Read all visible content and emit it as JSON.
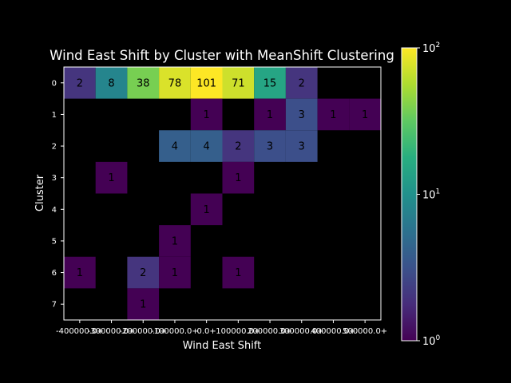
{
  "chart_data": {
    "type": "heatmap",
    "title": "Wind East Shift by Cluster with MeanShift Clustering",
    "xlabel": "Wind East Shift",
    "ylabel": "Cluster",
    "x_tick_labels": [
      "-400000.0+",
      "-300000.0+",
      "-200000.0+",
      "-100000.0+",
      "0.0+",
      "100000.0+",
      "200000.0+",
      "300000.0+",
      "400000.0+",
      "500000.0+"
    ],
    "y_tick_labels": [
      "0",
      "1",
      "2",
      "3",
      "4",
      "5",
      "6",
      "7"
    ],
    "matrix": [
      [
        2,
        8,
        38,
        78,
        101,
        71,
        15,
        2,
        null,
        null
      ],
      [
        null,
        null,
        null,
        null,
        1,
        null,
        1,
        3,
        1,
        1
      ],
      [
        null,
        null,
        null,
        4,
        4,
        2,
        3,
        3,
        null,
        null
      ],
      [
        null,
        1,
        null,
        null,
        null,
        1,
        null,
        null,
        null,
        null
      ],
      [
        null,
        null,
        null,
        null,
        1,
        null,
        null,
        null,
        null,
        null
      ],
      [
        null,
        null,
        null,
        1,
        null,
        null,
        null,
        null,
        null,
        null
      ],
      [
        1,
        null,
        2,
        1,
        null,
        1,
        null,
        null,
        null,
        null
      ],
      [
        null,
        null,
        1,
        null,
        null,
        null,
        null,
        null,
        null,
        null
      ]
    ],
    "colorbar": {
      "scale": "log",
      "range": [
        1,
        100
      ],
      "ticks": [
        {
          "value": 1,
          "base": "10",
          "exp": "0"
        },
        {
          "value": 10,
          "base": "10",
          "exp": "1"
        },
        {
          "value": 100,
          "base": "10",
          "exp": "2"
        }
      ],
      "colormap": "viridis"
    },
    "background_color": "#000000",
    "text_color": "#ffffff",
    "cell_text_color": "#000000"
  }
}
